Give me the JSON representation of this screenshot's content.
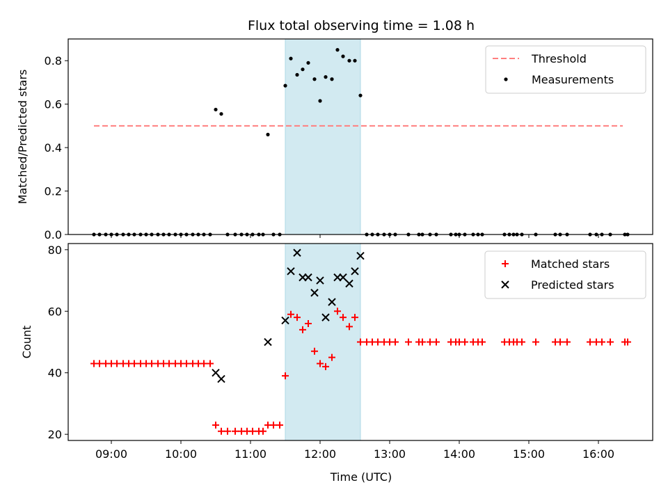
{
  "chart_data": {
    "type": "scatter",
    "title": "Flux total observing time = 1.08 h",
    "xlabel": "Time (UTC)",
    "x_ticks": [
      "09:00",
      "10:00",
      "11:00",
      "12:00",
      "13:00",
      "14:00",
      "15:00",
      "16:00"
    ],
    "x_range_hours": [
      8.38,
      16.78
    ],
    "shaded_interval_hours": [
      11.5,
      12.58
    ],
    "shade_color": "#add8e6",
    "panels": [
      {
        "ylabel": "Matched/Predicted stars",
        "ylim": [
          0,
          0.9
        ],
        "y_ticks": [
          "0.0",
          "0.2",
          "0.4",
          "0.6",
          "0.8"
        ],
        "y_tick_values": [
          0,
          0.2,
          0.4,
          0.6,
          0.8
        ],
        "legend": {
          "placement": "top-right",
          "entries": [
            "Threshold",
            "Measurements"
          ]
        },
        "series": [
          {
            "name": "Threshold",
            "style": "dashed-line",
            "color": "#ff7f7f",
            "x": [
              8.75,
              16.35
            ],
            "y": [
              0.5,
              0.5
            ]
          },
          {
            "name": "Measurements",
            "style": "dot",
            "color": "#000000",
            "x": [
              8.75,
              8.83,
              8.92,
              9.0,
              9.08,
              9.17,
              9.25,
              9.33,
              9.42,
              9.5,
              9.58,
              9.67,
              9.75,
              9.83,
              9.92,
              10.0,
              10.08,
              10.17,
              10.25,
              10.33,
              10.42,
              10.5,
              10.58,
              10.67,
              10.78,
              10.87,
              10.95,
              11.03,
              11.12,
              11.18,
              11.25,
              11.33,
              11.42,
              11.5,
              11.58,
              11.67,
              11.75,
              11.83,
              11.92,
              12.0,
              12.08,
              12.17,
              12.25,
              12.33,
              12.42,
              12.5,
              12.58,
              12.67,
              12.75,
              12.83,
              12.92,
              13.0,
              13.08,
              13.27,
              13.42,
              13.47,
              13.58,
              13.67,
              13.88,
              13.95,
              14.0,
              14.08,
              14.2,
              14.27,
              14.33,
              14.65,
              14.72,
              14.78,
              14.83,
              14.9,
              15.1,
              15.38,
              15.45,
              15.55,
              15.88,
              15.97,
              16.05,
              16.17,
              16.38,
              16.42
            ],
            "y": [
              0,
              0,
              0,
              0,
              0,
              0,
              0,
              0,
              0,
              0,
              0,
              0,
              0,
              0,
              0,
              0,
              0,
              0,
              0,
              0,
              0,
              0.575,
              0.555,
              0,
              0,
              0,
              0,
              0,
              0,
              0,
              0.46,
              0,
              0,
              0.685,
              0.81,
              0.735,
              0.76,
              0.79,
              0.715,
              0.615,
              0.725,
              0.715,
              0.85,
              0.82,
              0.8,
              0.8,
              0.64,
              0,
              0,
              0,
              0,
              0,
              0,
              0,
              0,
              0,
              0,
              0,
              0,
              0,
              0,
              0,
              0,
              0,
              0,
              0,
              0,
              0,
              0,
              0,
              0,
              0,
              0,
              0,
              0,
              0,
              0,
              0,
              0,
              0
            ]
          }
        ]
      },
      {
        "ylabel": "Count",
        "ylim": [
          18,
          82
        ],
        "y_ticks": [
          "20",
          "40",
          "60",
          "80"
        ],
        "y_tick_values": [
          20,
          40,
          60,
          80
        ],
        "legend": {
          "placement": "top-right",
          "entries": [
            "Matched stars",
            "Predicted stars"
          ]
        },
        "series": [
          {
            "name": "Matched stars",
            "style": "plus",
            "color": "#ff0000",
            "x": [
              8.75,
              8.83,
              8.92,
              9.0,
              9.08,
              9.17,
              9.25,
              9.33,
              9.42,
              9.5,
              9.58,
              9.67,
              9.75,
              9.83,
              9.92,
              10.0,
              10.08,
              10.17,
              10.25,
              10.33,
              10.42,
              10.5,
              10.58,
              10.67,
              10.78,
              10.87,
              10.95,
              11.03,
              11.12,
              11.18,
              11.25,
              11.33,
              11.42,
              11.5,
              11.58,
              11.67,
              11.75,
              11.83,
              11.92,
              12.0,
              12.08,
              12.17,
              12.25,
              12.33,
              12.42,
              12.5,
              12.58,
              12.67,
              12.75,
              12.83,
              12.92,
              13.0,
              13.08,
              13.27,
              13.42,
              13.47,
              13.58,
              13.67,
              13.88,
              13.95,
              14.0,
              14.08,
              14.2,
              14.27,
              14.33,
              14.65,
              14.72,
              14.78,
              14.83,
              14.9,
              15.1,
              15.38,
              15.45,
              15.55,
              15.88,
              15.97,
              16.05,
              16.17,
              16.38,
              16.42
            ],
            "y": [
              43,
              43,
              43,
              43,
              43,
              43,
              43,
              43,
              43,
              43,
              43,
              43,
              43,
              43,
              43,
              43,
              43,
              43,
              43,
              43,
              43,
              23,
              21,
              21,
              21,
              21,
              21,
              21,
              21,
              21,
              23,
              23,
              23,
              39,
              59,
              58,
              54,
              56,
              47,
              43,
              42,
              45,
              60,
              58,
              55,
              58,
              50,
              50,
              50,
              50,
              50,
              50,
              50,
              50,
              50,
              50,
              50,
              50,
              50,
              50,
              50,
              50,
              50,
              50,
              50,
              50,
              50,
              50,
              50,
              50,
              50,
              50,
              50,
              50,
              50,
              50,
              50,
              50,
              50,
              50
            ]
          },
          {
            "name": "Predicted stars",
            "style": "x",
            "color": "#000000",
            "x": [
              10.5,
              10.58,
              11.25,
              11.5,
              11.58,
              11.67,
              11.75,
              11.83,
              11.92,
              12.0,
              12.08,
              12.17,
              12.25,
              12.33,
              12.42,
              12.5,
              12.58
            ],
            "y": [
              40,
              38,
              50,
              57,
              73,
              79,
              71,
              71,
              66,
              70,
              58,
              63,
              71,
              71,
              69,
              73,
              78
            ]
          }
        ]
      }
    ]
  }
}
